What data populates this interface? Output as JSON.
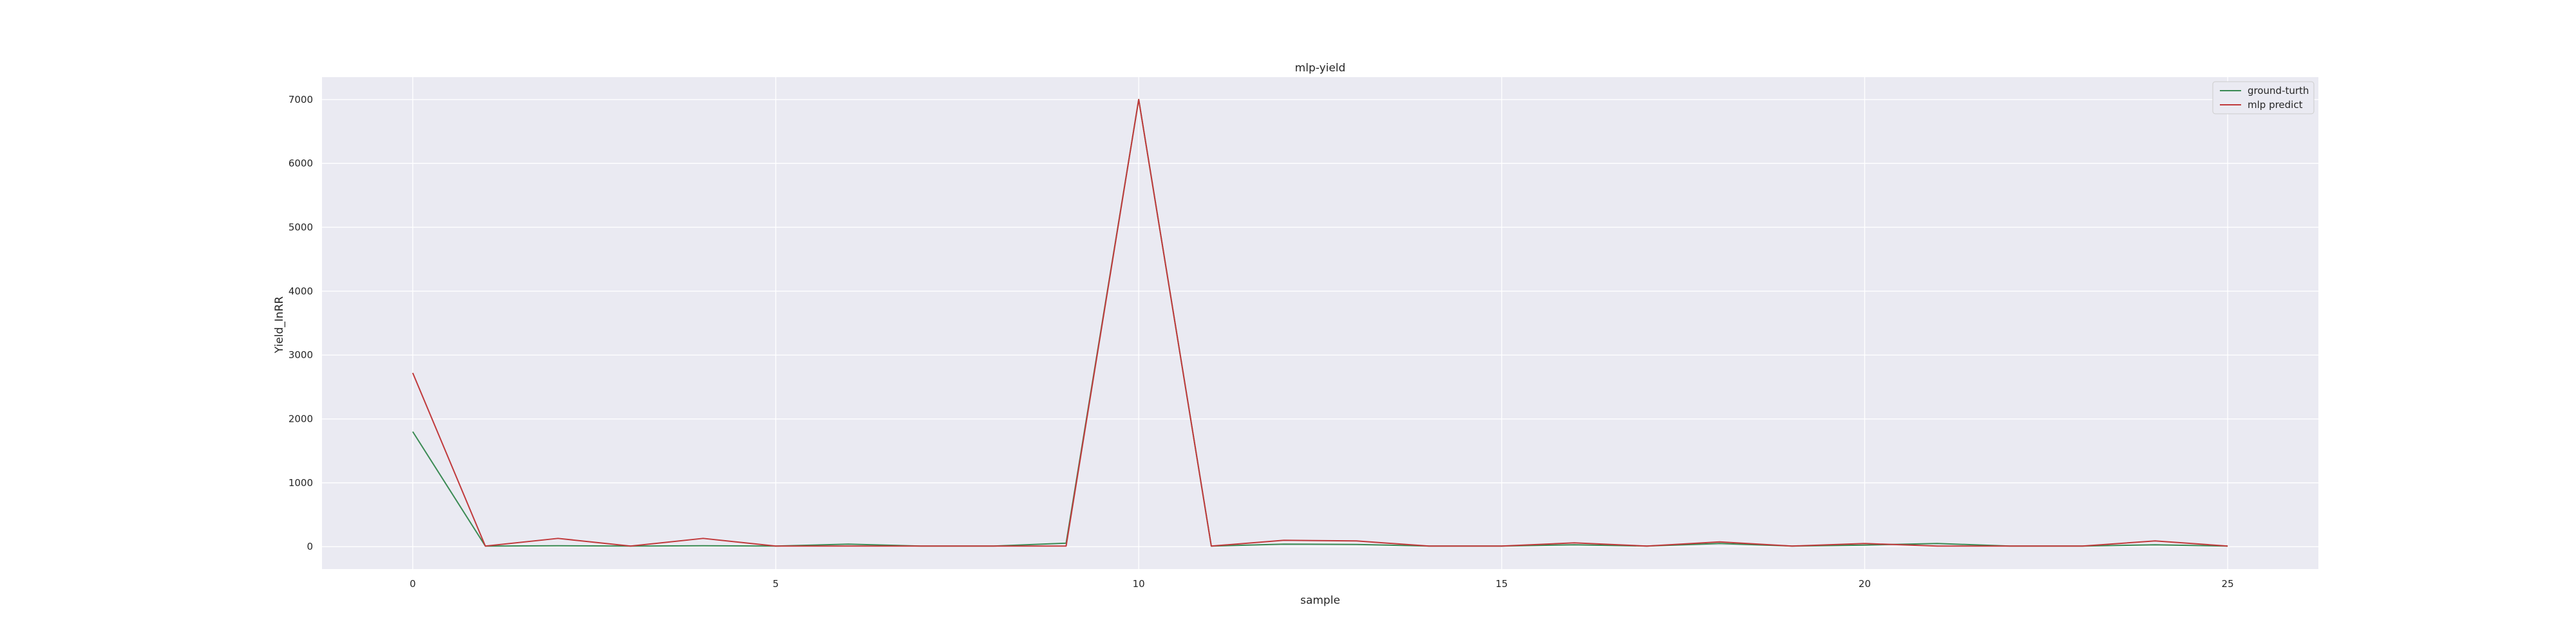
{
  "chart_data": {
    "type": "line",
    "title": "mlp-yield",
    "xlabel": "sample",
    "ylabel": "Yield_InRR",
    "x": [
      0,
      1,
      2,
      3,
      4,
      5,
      6,
      7,
      8,
      9,
      10,
      11,
      12,
      13,
      14,
      15,
      16,
      17,
      18,
      19,
      20,
      21,
      22,
      23,
      24,
      25
    ],
    "xticks": [
      0,
      5,
      10,
      15,
      20,
      25
    ],
    "yticks": [
      0,
      1000,
      2000,
      3000,
      4000,
      5000,
      6000,
      7000
    ],
    "xlim": [
      -1.25,
      26.25
    ],
    "ylim": [
      -350,
      7350
    ],
    "grid": true,
    "legend_position": "top-right",
    "series": [
      {
        "name": "ground-turth",
        "color": "#3a8a53",
        "values": [
          1800,
          10,
          15,
          10,
          15,
          10,
          40,
          10,
          10,
          55,
          7000,
          10,
          40,
          35,
          10,
          10,
          30,
          10,
          50,
          10,
          25,
          50,
          10,
          10,
          30,
          10
        ]
      },
      {
        "name": "mlp predict",
        "color": "#c0393b",
        "values": [
          2720,
          10,
          130,
          10,
          130,
          10,
          10,
          10,
          10,
          10,
          7000,
          10,
          100,
          90,
          10,
          10,
          60,
          10,
          75,
          10,
          50,
          10,
          10,
          10,
          90,
          10
        ]
      }
    ]
  }
}
